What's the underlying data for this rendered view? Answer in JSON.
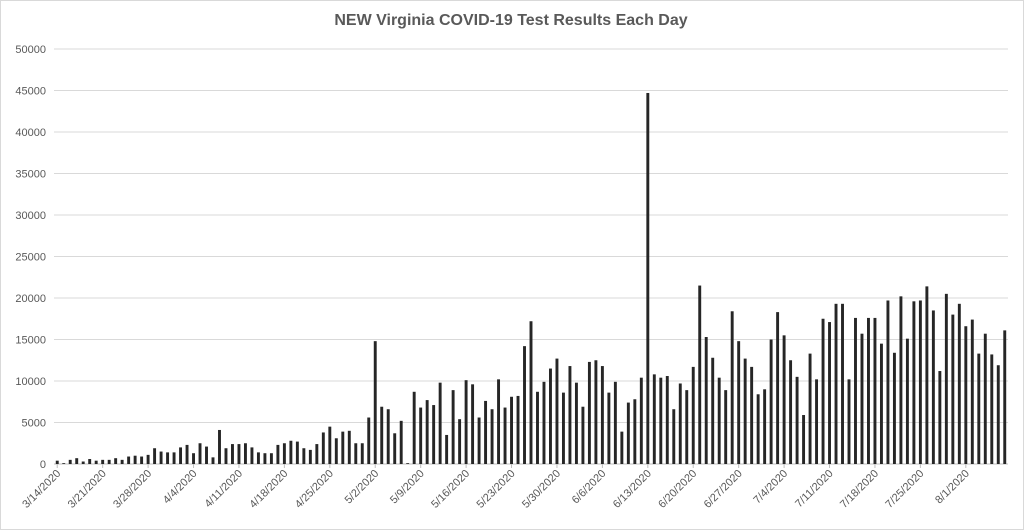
{
  "chart_data": {
    "type": "bar",
    "title": "NEW Virginia COVID-19 Test Results Each Day",
    "xlabel": "",
    "ylabel": "",
    "ylim": [
      0,
      50000
    ],
    "y_ticks": [
      0,
      5000,
      10000,
      15000,
      20000,
      25000,
      30000,
      35000,
      40000,
      45000,
      50000
    ],
    "y_tick_labels": [
      "0",
      "5000",
      "10000",
      "15000",
      "20000",
      "25000",
      "30000",
      "35000",
      "40000",
      "45000",
      "50000"
    ],
    "x_tick_labels": [
      "3/14/2020",
      "3/21/2020",
      "3/28/2020",
      "4/4/2020",
      "4/11/2020",
      "4/18/2020",
      "4/25/2020",
      "5/2/2020",
      "5/9/2020",
      "5/16/2020",
      "5/23/2020",
      "5/30/2020",
      "6/6/2020",
      "6/13/2020",
      "6/20/2020",
      "6/27/2020",
      "7/4/2020",
      "7/11/2020",
      "7/18/2020",
      "7/25/2020",
      "8/1/2020"
    ],
    "grid": true,
    "bar_color": "#262626",
    "categories": [
      "3/14/2020",
      "3/15/2020",
      "3/16/2020",
      "3/17/2020",
      "3/18/2020",
      "3/19/2020",
      "3/20/2020",
      "3/21/2020",
      "3/22/2020",
      "3/23/2020",
      "3/24/2020",
      "3/25/2020",
      "3/26/2020",
      "3/27/2020",
      "3/28/2020",
      "3/29/2020",
      "3/30/2020",
      "3/31/2020",
      "4/1/2020",
      "4/2/2020",
      "4/3/2020",
      "4/4/2020",
      "4/5/2020",
      "4/6/2020",
      "4/7/2020",
      "4/8/2020",
      "4/9/2020",
      "4/10/2020",
      "4/11/2020",
      "4/12/2020",
      "4/13/2020",
      "4/14/2020",
      "4/15/2020",
      "4/16/2020",
      "4/17/2020",
      "4/18/2020",
      "4/19/2020",
      "4/20/2020",
      "4/21/2020",
      "4/22/2020",
      "4/23/2020",
      "4/24/2020",
      "4/25/2020",
      "4/26/2020",
      "4/27/2020",
      "4/28/2020",
      "4/29/2020",
      "4/30/2020",
      "5/1/2020",
      "5/2/2020",
      "5/3/2020",
      "5/4/2020",
      "5/5/2020",
      "5/6/2020",
      "5/7/2020",
      "5/8/2020",
      "5/9/2020",
      "5/10/2020",
      "5/11/2020",
      "5/12/2020",
      "5/13/2020",
      "5/14/2020",
      "5/15/2020",
      "5/16/2020",
      "5/17/2020",
      "5/18/2020",
      "5/19/2020",
      "5/20/2020",
      "5/21/2020",
      "5/22/2020",
      "5/23/2020",
      "5/24/2020",
      "5/25/2020",
      "5/26/2020",
      "5/27/2020",
      "5/28/2020",
      "5/29/2020",
      "5/30/2020",
      "5/31/2020",
      "6/1/2020",
      "6/2/2020",
      "6/3/2020",
      "6/4/2020",
      "6/5/2020",
      "6/6/2020",
      "6/7/2020",
      "6/8/2020",
      "6/9/2020",
      "6/10/2020",
      "6/11/2020",
      "6/12/2020",
      "6/13/2020",
      "6/14/2020",
      "6/15/2020",
      "6/16/2020",
      "6/17/2020",
      "6/18/2020",
      "6/19/2020",
      "6/20/2020",
      "6/21/2020",
      "6/22/2020",
      "6/23/2020",
      "6/24/2020",
      "6/25/2020",
      "6/26/2020",
      "6/27/2020",
      "6/28/2020",
      "6/29/2020",
      "6/30/2020",
      "7/1/2020",
      "7/2/2020",
      "7/3/2020",
      "7/4/2020",
      "7/5/2020",
      "7/6/2020",
      "7/7/2020",
      "7/8/2020",
      "7/9/2020",
      "7/10/2020",
      "7/11/2020",
      "7/12/2020",
      "7/13/2020",
      "7/14/2020",
      "7/15/2020",
      "7/16/2020",
      "7/17/2020",
      "7/18/2020",
      "7/19/2020",
      "7/20/2020",
      "7/21/2020",
      "7/22/2020",
      "7/23/2020",
      "7/24/2020",
      "7/25/2020",
      "7/26/2020",
      "7/27/2020",
      "7/28/2020",
      "7/29/2020",
      "7/30/2020",
      "7/31/2020",
      "8/1/2020",
      "8/2/2020",
      "8/3/2020",
      "8/4/2020",
      "8/5/2020",
      "8/6/2020",
      "8/7/2020"
    ],
    "values": [
      400,
      100,
      500,
      700,
      300,
      600,
      400,
      500,
      500,
      700,
      500,
      900,
      1000,
      900,
      1100,
      1900,
      1500,
      1400,
      1400,
      2000,
      2300,
      1300,
      2500,
      2100,
      800,
      4100,
      1900,
      2400,
      2400,
      2500,
      2000,
      1400,
      1300,
      1300,
      2300,
      2500,
      2800,
      2700,
      1900,
      1700,
      2400,
      3800,
      4500,
      3100,
      3900,
      4000,
      2500,
      2500,
      5600,
      14800,
      6900,
      6600,
      3700,
      5200,
      100,
      8700,
      6800,
      7700,
      7100,
      9800,
      3500,
      8900,
      5400,
      10100,
      9600,
      5600,
      7600,
      6600,
      10200,
      6800,
      8100,
      8200,
      14200,
      17200,
      8700,
      9900,
      11500,
      12700,
      8600,
      11800,
      9800,
      6900,
      12300,
      12500,
      11800,
      8600,
      9900,
      3900,
      7400,
      7800,
      10400,
      44700,
      10800,
      10400,
      10600,
      6600,
      9700,
      8900,
      11700,
      21500,
      15300,
      12800,
      10400,
      8900,
      18400,
      14800,
      12700,
      11700,
      8400,
      9000,
      15000,
      18300,
      15500,
      12500,
      10500,
      5900,
      13300,
      10200,
      17500,
      17100,
      19300,
      19300,
      10200,
      17600,
      15700,
      17600,
      17600,
      14500,
      19700,
      13400,
      20200,
      15100,
      19600,
      19700,
      21400,
      18500,
      11200,
      20500,
      18000,
      19300,
      16600,
      17400,
      13300,
      15700,
      13200,
      11900,
      16100
    ]
  }
}
